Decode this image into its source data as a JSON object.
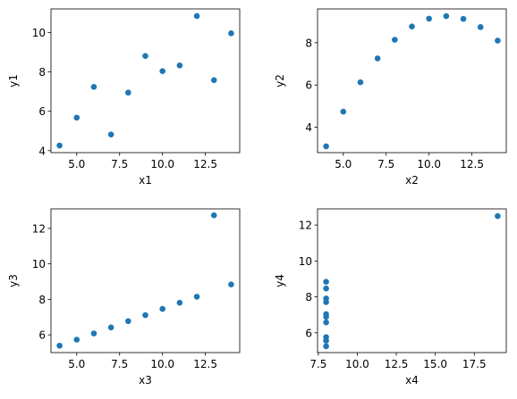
{
  "chart_data": [
    {
      "type": "scatter",
      "xlabel": "x1",
      "ylabel": "y1",
      "xlim": [
        3.5,
        14.5
      ],
      "ylim": [
        3.9,
        11.2
      ],
      "xticks": [
        5.0,
        7.5,
        10.0,
        12.5
      ],
      "xtick_labels": [
        "5.0",
        "7.5",
        "10.0",
        "12.5"
      ],
      "yticks": [
        4,
        6,
        8,
        10
      ],
      "ytick_labels": [
        "4",
        "6",
        "8",
        "10"
      ],
      "grid": false,
      "series": [
        {
          "color": "#1f77b4",
          "x": [
            10,
            8,
            13,
            9,
            11,
            14,
            6,
            4,
            12,
            7,
            5
          ],
          "y": [
            8.04,
            6.95,
            7.58,
            8.81,
            8.33,
            9.96,
            7.24,
            4.26,
            10.84,
            4.82,
            5.68
          ]
        }
      ]
    },
    {
      "type": "scatter",
      "xlabel": "x2",
      "ylabel": "y2",
      "xlim": [
        3.5,
        14.5
      ],
      "ylim": [
        2.8,
        9.6
      ],
      "xticks": [
        5.0,
        7.5,
        10.0,
        12.5
      ],
      "xtick_labels": [
        "5.0",
        "7.5",
        "10.0",
        "12.5"
      ],
      "yticks": [
        4,
        6,
        8
      ],
      "ytick_labels": [
        "4",
        "6",
        "8"
      ],
      "grid": false,
      "series": [
        {
          "color": "#1f77b4",
          "x": [
            10,
            8,
            13,
            9,
            11,
            14,
            6,
            4,
            12,
            7,
            5
          ],
          "y": [
            9.14,
            8.14,
            8.74,
            8.77,
            9.26,
            8.1,
            6.13,
            3.1,
            9.13,
            7.26,
            4.74
          ]
        }
      ]
    },
    {
      "type": "scatter",
      "xlabel": "x3",
      "ylabel": "y3",
      "xlim": [
        3.5,
        14.5
      ],
      "ylim": [
        5.0,
        13.1
      ],
      "xticks": [
        5.0,
        7.5,
        10.0,
        12.5
      ],
      "xtick_labels": [
        "5.0",
        "7.5",
        "10.0",
        "12.5"
      ],
      "yticks": [
        6,
        8,
        10,
        12
      ],
      "ytick_labels": [
        "6",
        "8",
        "10",
        "12"
      ],
      "grid": false,
      "series": [
        {
          "color": "#1f77b4",
          "x": [
            10,
            8,
            13,
            9,
            11,
            14,
            6,
            4,
            12,
            7,
            5
          ],
          "y": [
            7.46,
            6.77,
            12.74,
            7.11,
            7.81,
            8.84,
            6.08,
            5.39,
            8.15,
            6.42,
            5.73
          ]
        }
      ]
    },
    {
      "type": "scatter",
      "xlabel": "x4",
      "ylabel": "y4",
      "xlim": [
        7.45,
        19.55
      ],
      "ylim": [
        4.9,
        12.9
      ],
      "xticks": [
        7.5,
        10.0,
        12.5,
        15.0,
        17.5
      ],
      "xtick_labels": [
        "7.5",
        "10.0",
        "12.5",
        "15.0",
        "17.5"
      ],
      "yticks": [
        6,
        8,
        10,
        12
      ],
      "ytick_labels": [
        "6",
        "8",
        "10",
        "12"
      ],
      "grid": false,
      "series": [
        {
          "color": "#1f77b4",
          "x": [
            8,
            8,
            8,
            8,
            8,
            8,
            8,
            19,
            8,
            8,
            8
          ],
          "y": [
            6.58,
            5.76,
            7.71,
            8.84,
            8.47,
            7.04,
            5.25,
            12.5,
            5.56,
            7.91,
            6.89
          ]
        }
      ]
    }
  ]
}
